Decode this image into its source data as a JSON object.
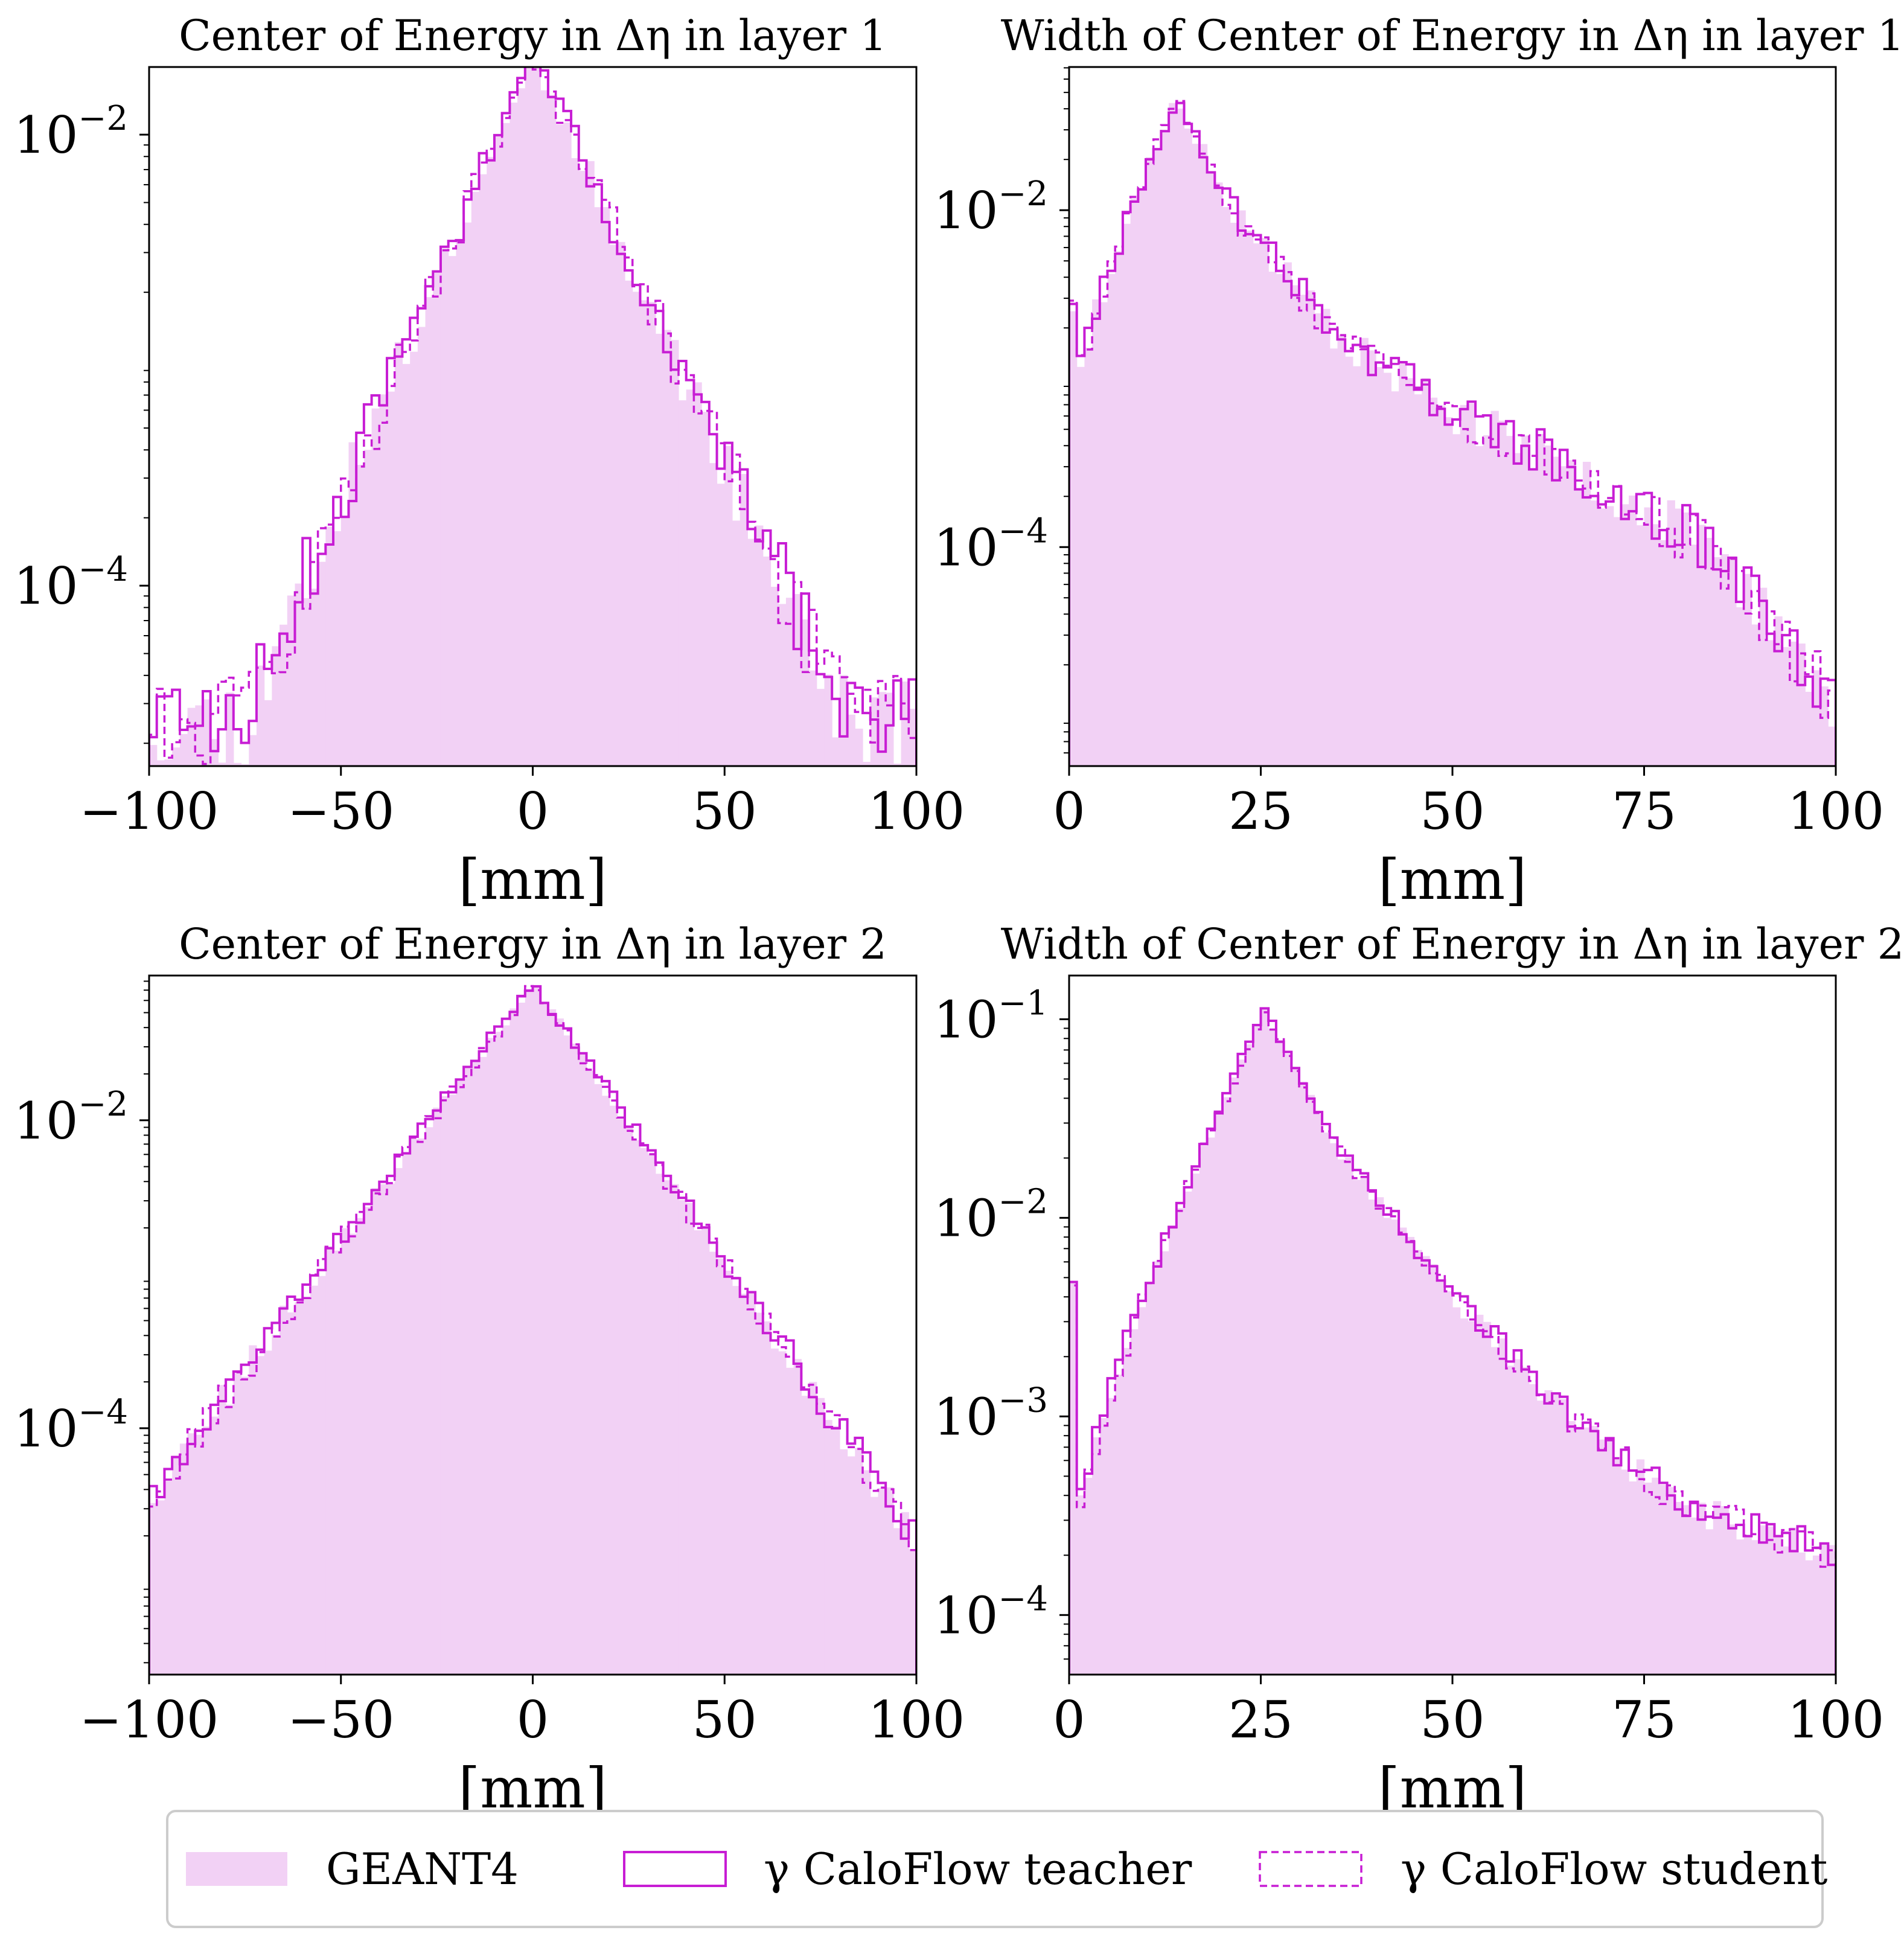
{
  "colors": {
    "geant4_fill": "#f2d1f5",
    "caloflow": "#c71dd4",
    "axis": "#000000",
    "legend_border": "#cccccc"
  },
  "legend": {
    "items": [
      {
        "label": "GEANT4",
        "style": "fill"
      },
      {
        "label": "γ CaloFlow teacher",
        "style": "solid"
      },
      {
        "label": "γ CaloFlow student",
        "style": "dashed"
      }
    ]
  },
  "chart_data": [
    {
      "type": "histogram",
      "title": "Center of Energy in Δη in layer 1",
      "xlabel": "[mm]",
      "xlim": [
        -100,
        100
      ],
      "ylim_log10": [
        -4.8,
        -1.7
      ],
      "yscale": "log",
      "x_ticks": [
        {
          "value": -100,
          "label": "−100"
        },
        {
          "value": -50,
          "label": "−50"
        },
        {
          "value": 0,
          "label": "0"
        },
        {
          "value": 50,
          "label": "50"
        },
        {
          "value": 100,
          "label": "100"
        }
      ],
      "y_ticks": [
        {
          "exp": -2,
          "base": "10",
          "sup": "−2"
        },
        {
          "exp": -4,
          "base": "10",
          "sup": "−4"
        }
      ],
      "shape": {
        "kind": "laplace",
        "center": 0,
        "peak_log10": -1.65,
        "scale_left": 11,
        "scale_right": 12,
        "floor_log10": -4.6,
        "floor_drop": 0.0,
        "jitter": 0.16,
        "seed": 11
      },
      "series": [
        {
          "name": "GEANT4"
        },
        {
          "name": "γ CaloFlow teacher"
        },
        {
          "name": "γ CaloFlow student"
        }
      ]
    },
    {
      "type": "histogram",
      "title": "Width of Center of Energy in Δη in layer 1",
      "xlabel": "[mm]",
      "xlim": [
        0,
        100
      ],
      "ylim_log10": [
        -5.3,
        -1.15
      ],
      "yscale": "log",
      "x_ticks": [
        {
          "value": 0,
          "label": "0"
        },
        {
          "value": 25,
          "label": "25"
        },
        {
          "value": 50,
          "label": "50"
        },
        {
          "value": 75,
          "label": "75"
        },
        {
          "value": 100,
          "label": "100"
        }
      ],
      "y_ticks": [
        {
          "exp": -2,
          "base": "10",
          "sup": "−2"
        },
        {
          "exp": -4,
          "base": "10",
          "sup": "−4"
        }
      ],
      "shape": {
        "kind": "width",
        "peak_x": 14,
        "peak_log10": -1.35,
        "rise_from_log10": -3.3,
        "start_spike_log10": -2.55,
        "tail_pts": [
          [
            14,
            -1.35
          ],
          [
            22,
            -2.05
          ],
          [
            35,
            -2.75
          ],
          [
            50,
            -3.2
          ],
          [
            70,
            -3.65
          ],
          [
            85,
            -4.05
          ],
          [
            100,
            -4.95
          ]
        ],
        "jitter": 0.14,
        "seed": 23
      },
      "series": [
        {
          "name": "GEANT4"
        },
        {
          "name": "γ CaloFlow teacher"
        },
        {
          "name": "γ CaloFlow student"
        }
      ]
    },
    {
      "type": "histogram",
      "title": "Center of Energy in Δη in layer 2",
      "xlabel": "[mm]",
      "xlim": [
        -100,
        100
      ],
      "ylim_log10": [
        -5.6,
        -1.06
      ],
      "yscale": "log",
      "x_ticks": [
        {
          "value": -100,
          "label": "−100"
        },
        {
          "value": -50,
          "label": "−50"
        },
        {
          "value": 0,
          "label": "0"
        },
        {
          "value": 50,
          "label": "50"
        },
        {
          "value": 100,
          "label": "100"
        }
      ],
      "y_ticks": [
        {
          "exp": -2,
          "base": "10",
          "sup": "−2"
        },
        {
          "exp": -4,
          "base": "10",
          "sup": "−4"
        }
      ],
      "shape": {
        "kind": "laplace",
        "center": 0,
        "peak_log10": -1.12,
        "scale_left": 13,
        "scale_right": 12,
        "floor_log10": -4.45,
        "floor_drop": 0.55,
        "jitter": 0.09,
        "seed": 37
      },
      "series": [
        {
          "name": "GEANT4"
        },
        {
          "name": "γ CaloFlow teacher"
        },
        {
          "name": "γ CaloFlow student"
        }
      ]
    },
    {
      "type": "histogram",
      "title": "Width of Center of Energy in Δη in layer 2",
      "xlabel": "[mm]",
      "xlim": [
        0,
        100
      ],
      "ylim_log10": [
        -4.3,
        -0.78
      ],
      "yscale": "log",
      "x_ticks": [
        {
          "value": 0,
          "label": "0"
        },
        {
          "value": 25,
          "label": "25"
        },
        {
          "value": 50,
          "label": "50"
        },
        {
          "value": 75,
          "label": "75"
        },
        {
          "value": 100,
          "label": "100"
        }
      ],
      "y_ticks": [
        {
          "exp": -1,
          "base": "10",
          "sup": "−1"
        },
        {
          "exp": -2,
          "base": "10",
          "sup": "−2"
        },
        {
          "exp": -3,
          "base": "10",
          "sup": "−3"
        },
        {
          "exp": -4,
          "base": "10",
          "sup": "−4"
        }
      ],
      "shape": {
        "kind": "width",
        "peak_x": 25.5,
        "peak_log10": -0.97,
        "rise_from_log10": -3.75,
        "start_spike_log10": -2.3,
        "tail_pts": [
          [
            25.5,
            -0.97
          ],
          [
            35,
            -1.65
          ],
          [
            50,
            -2.4
          ],
          [
            65,
            -3.0
          ],
          [
            80,
            -3.45
          ],
          [
            100,
            -3.7
          ]
        ],
        "jitter": 0.07,
        "seed": 53
      },
      "series": [
        {
          "name": "GEANT4"
        },
        {
          "name": "γ CaloFlow teacher"
        },
        {
          "name": "γ CaloFlow student"
        }
      ]
    }
  ]
}
